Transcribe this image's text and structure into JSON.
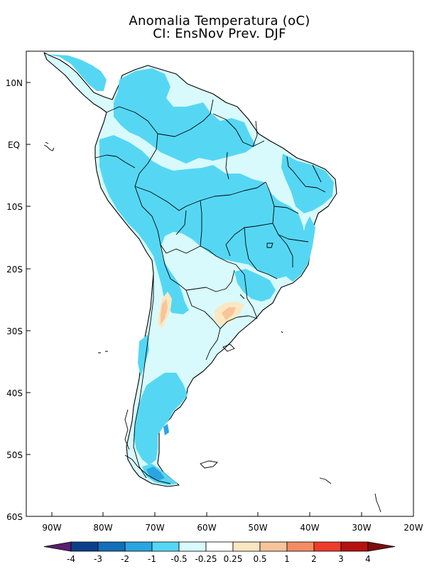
{
  "title": {
    "line1": "Anomalia Temperatura (oC)",
    "line2": "CI: EnsNov Prev. DJF"
  },
  "map": {
    "lon_labels": [
      "90W",
      "80W",
      "70W",
      "60W",
      "50W",
      "40W",
      "30W",
      "20W"
    ],
    "lat_labels": [
      "10N",
      "EQ",
      "10S",
      "20S",
      "30S",
      "40S",
      "50S",
      "60S"
    ]
  },
  "colorbar": {
    "ticks": [
      "-4",
      "-3",
      "-2",
      "-1",
      "-0.5",
      "-0.25",
      "0.25",
      "0.5",
      "1",
      "2",
      "3",
      "4"
    ],
    "colors": [
      "#5a1f6e",
      "#0b3f8a",
      "#136fb8",
      "#2aa5e0",
      "#55d7f4",
      "#d8fafc",
      "#ffffff",
      "#fbe7c2",
      "#f8c49a",
      "#f48c66",
      "#ef3b2c",
      "#b5120f",
      "#7d0d0d"
    ],
    "left_arrow_color": "#5a1f6e",
    "right_arrow_color": "#7d0d0d"
  }
}
